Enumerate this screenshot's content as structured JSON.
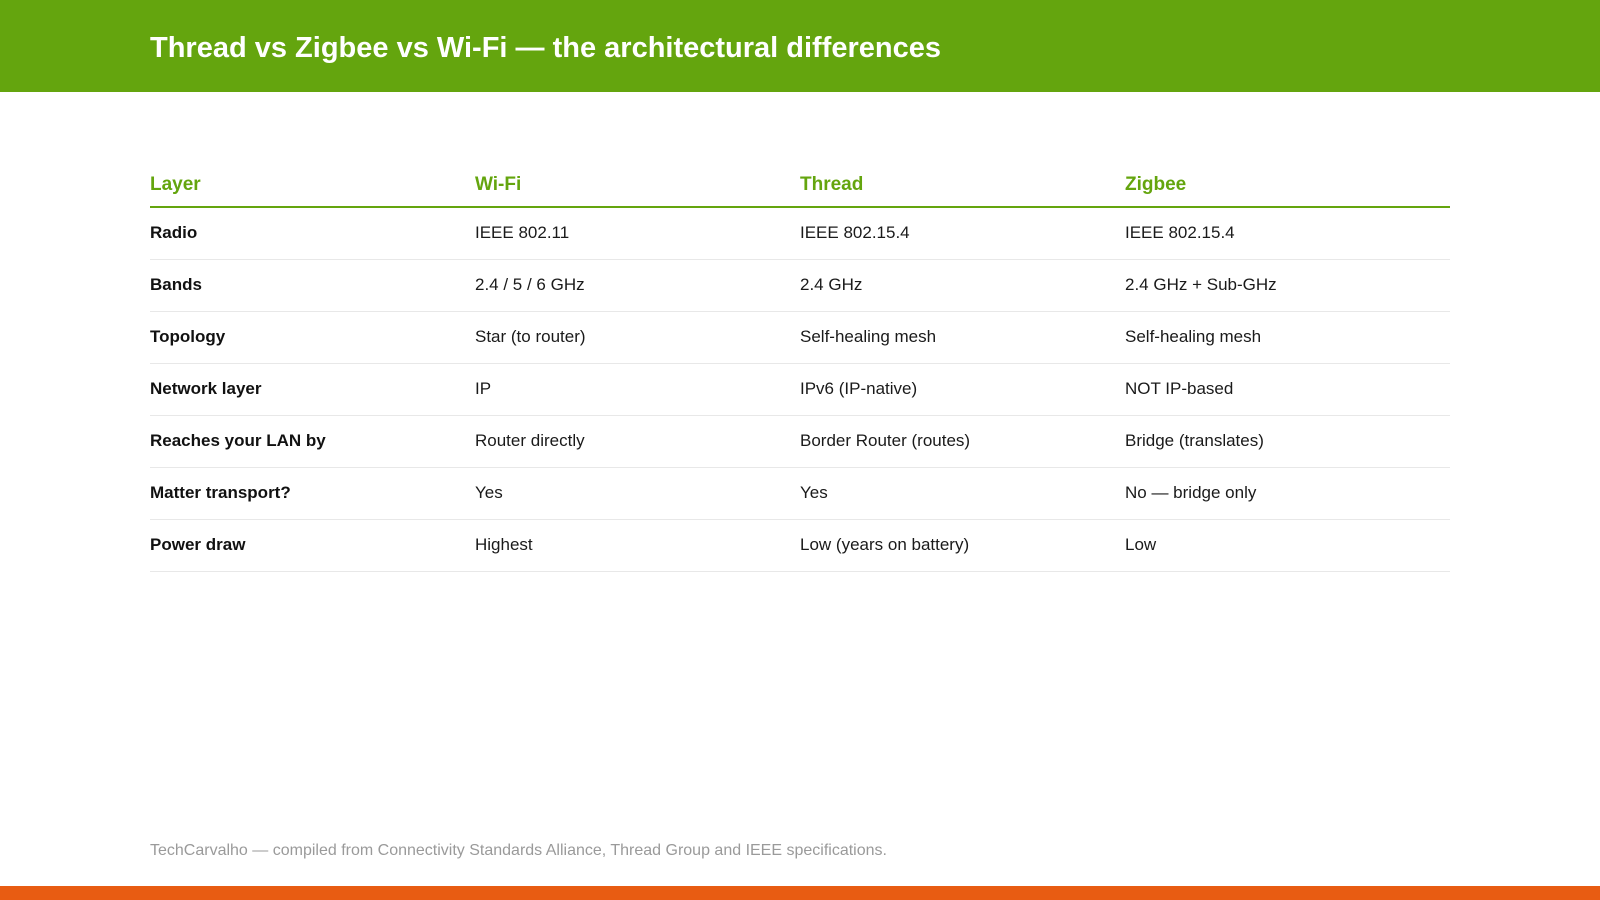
{
  "header": {
    "title": "Thread vs Zigbee vs Wi-Fi — the architectural differences"
  },
  "table": {
    "columns": [
      "Layer",
      "Wi-Fi",
      "Thread",
      "Zigbee"
    ],
    "rows": [
      [
        "Radio",
        "IEEE 802.11",
        "IEEE 802.15.4",
        "IEEE 802.15.4"
      ],
      [
        "Bands",
        "2.4 / 5 / 6 GHz",
        "2.4 GHz",
        "2.4 GHz + Sub-GHz"
      ],
      [
        "Topology",
        "Star (to router)",
        "Self-healing mesh",
        "Self-healing mesh"
      ],
      [
        "Network layer",
        "IP",
        "IPv6 (IP-native)",
        "NOT IP-based"
      ],
      [
        "Reaches your LAN by",
        "Router directly",
        "Border Router (routes)",
        "Bridge (translates)"
      ],
      [
        "Matter transport?",
        "Yes",
        "Yes",
        "No — bridge only"
      ],
      [
        "Power draw",
        "Highest",
        "Low (years on battery)",
        "Low"
      ]
    ]
  },
  "footer": {
    "note": "TechCarvalho — compiled from Connectivity Standards Alliance, Thread Group and IEEE specifications."
  },
  "colors": {
    "brand_green": "#64a50e",
    "accent_orange": "#e85c12"
  }
}
